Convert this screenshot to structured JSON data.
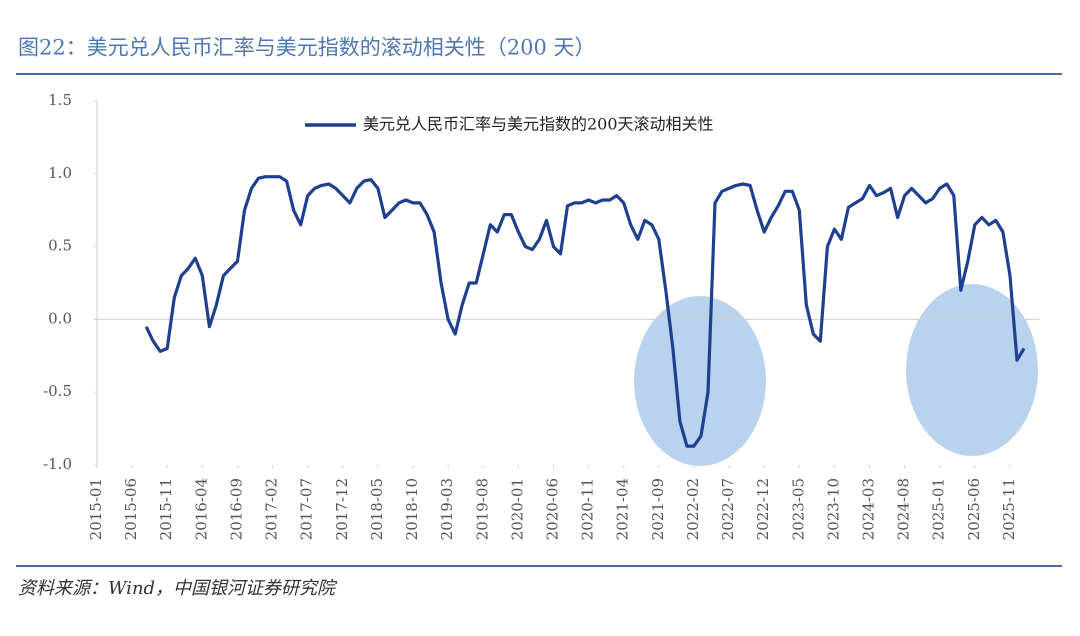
{
  "chart_data": {
    "type": "line",
    "title": "图22：美元兑人民币汇率与美元指数的滚动相关性（200 天）",
    "source": "资料来源：Wind，中国银河证券研究院",
    "x": [
      "2015-08",
      "2015-09",
      "2015-10",
      "2015-11",
      "2015-12",
      "2016-01",
      "2016-02",
      "2016-03",
      "2016-04",
      "2016-05",
      "2016-06",
      "2016-07",
      "2016-08",
      "2016-09",
      "2016-10",
      "2016-11",
      "2016-12",
      "2017-01",
      "2017-02",
      "2017-03",
      "2017-04",
      "2017-05",
      "2017-06",
      "2017-07",
      "2017-08",
      "2017-09",
      "2017-10",
      "2017-11",
      "2017-12",
      "2018-01",
      "2018-02",
      "2018-03",
      "2018-04",
      "2018-05",
      "2018-06",
      "2018-07",
      "2018-08",
      "2018-09",
      "2018-10",
      "2018-11",
      "2018-12",
      "2019-01",
      "2019-02",
      "2019-03",
      "2019-04",
      "2019-05",
      "2019-06",
      "2019-07",
      "2019-08",
      "2019-09",
      "2019-10",
      "2019-11",
      "2019-12",
      "2020-01",
      "2020-02",
      "2020-03",
      "2020-04",
      "2020-05",
      "2020-06",
      "2020-07",
      "2020-08",
      "2020-09",
      "2020-10",
      "2020-11",
      "2020-12",
      "2021-01",
      "2021-02",
      "2021-03",
      "2021-04",
      "2021-05",
      "2021-06",
      "2021-07",
      "2021-08",
      "2021-09",
      "2021-10",
      "2021-11",
      "2021-12",
      "2022-01",
      "2022-02",
      "2022-03",
      "2022-04",
      "2022-05",
      "2022-06",
      "2022-07",
      "2022-08",
      "2022-09",
      "2022-10",
      "2022-11",
      "2022-12",
      "2023-01",
      "2023-02",
      "2023-03",
      "2023-04",
      "2023-05",
      "2023-06",
      "2023-07",
      "2023-08",
      "2023-09",
      "2023-10",
      "2023-11",
      "2023-12",
      "2024-01",
      "2024-02",
      "2024-03",
      "2024-04",
      "2024-05",
      "2024-06",
      "2024-07",
      "2024-08",
      "2024-09",
      "2024-10",
      "2024-11",
      "2024-12",
      "2025-01",
      "2025-02",
      "2025-03",
      "2025-04",
      "2025-05",
      "2025-06",
      "2025-07",
      "2025-08",
      "2025-09",
      "2025-10",
      "2025-11",
      "2025-12",
      "2026-01"
    ],
    "series": [
      {
        "name": "美元兑人民币汇率与美元指数的200天滚动相关性",
        "color": "#1f3f8f",
        "values": [
          -0.05,
          -0.15,
          -0.22,
          -0.2,
          0.15,
          0.3,
          0.35,
          0.42,
          0.3,
          -0.05,
          0.1,
          0.3,
          0.35,
          0.4,
          0.75,
          0.9,
          0.97,
          0.98,
          0.98,
          0.98,
          0.95,
          0.75,
          0.65,
          0.85,
          0.9,
          0.92,
          0.93,
          0.9,
          0.85,
          0.8,
          0.9,
          0.95,
          0.96,
          0.9,
          0.7,
          0.75,
          0.8,
          0.82,
          0.8,
          0.8,
          0.72,
          0.6,
          0.25,
          0.0,
          -0.1,
          0.1,
          0.25,
          0.25,
          0.45,
          0.65,
          0.6,
          0.72,
          0.72,
          0.6,
          0.5,
          0.48,
          0.55,
          0.68,
          0.5,
          0.45,
          0.78,
          0.8,
          0.8,
          0.82,
          0.8,
          0.82,
          0.82,
          0.85,
          0.8,
          0.65,
          0.55,
          0.68,
          0.65,
          0.55,
          0.2,
          -0.2,
          -0.7,
          -0.87,
          -0.87,
          -0.8,
          -0.5,
          0.8,
          0.88,
          0.9,
          0.92,
          0.93,
          0.92,
          0.75,
          0.6,
          0.7,
          0.78,
          0.88,
          0.88,
          0.75,
          0.1,
          -0.1,
          -0.15,
          0.5,
          0.62,
          0.55,
          0.77,
          0.8,
          0.83,
          0.92,
          0.85,
          0.87,
          0.9,
          0.7,
          0.85,
          0.9,
          0.85,
          0.8,
          0.83,
          0.9,
          0.93,
          0.85,
          0.2,
          0.4,
          0.65,
          0.7,
          0.65,
          0.68,
          0.6,
          0.3,
          -0.28,
          -0.2
        ]
      }
    ],
    "xlim": [
      "2015-01",
      "2026-01"
    ],
    "xticks": [
      "2015-01",
      "2015-06",
      "2015-11",
      "2016-04",
      "2016-09",
      "2017-02",
      "2017-07",
      "2017-12",
      "2018-05",
      "2018-10",
      "2019-03",
      "2019-08",
      "2020-01",
      "2020-06",
      "2020-11",
      "2021-04",
      "2021-09",
      "2022-02",
      "2022-07",
      "2022-12",
      "2023-05",
      "2023-10",
      "2024-03",
      "2024-08",
      "2025-01",
      "2025-06",
      "2025-11"
    ],
    "ylim": [
      -1.0,
      1.5
    ],
    "yticks": [
      {
        "value": -1.0,
        "label": "-1.0"
      },
      -0.5,
      {
        "value": 0.0,
        "label": "0.0"
      },
      0.5,
      {
        "value": 1.0,
        "label": "1.0"
      },
      1.5
    ],
    "legend": "top"
  }
}
